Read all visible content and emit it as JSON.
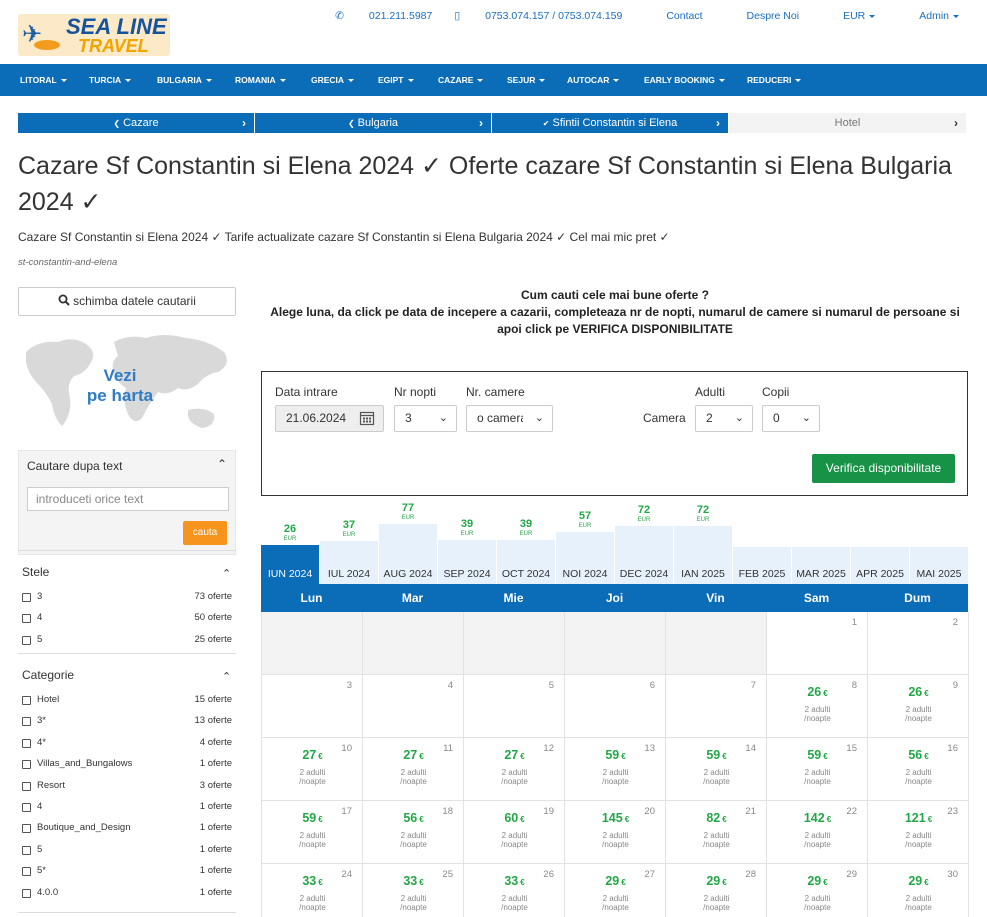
{
  "header": {
    "logo": {
      "line1": "SEA LINE",
      "line2": "TRAVEL"
    },
    "links": [
      {
        "icon": "phone-icon",
        "glyph": "✆",
        "label": "021.211.5987"
      },
      {
        "icon": "mobile-icon",
        "glyph": "▯",
        "label": "0753.074.157 / 0753.074.159"
      },
      {
        "icon": "",
        "glyph": "",
        "label": "Contact"
      },
      {
        "icon": "",
        "glyph": "",
        "label": "Despre Noi"
      },
      {
        "icon": "",
        "glyph": "",
        "label": "EUR"
      },
      {
        "icon": "",
        "glyph": "",
        "label": "Admin"
      }
    ]
  },
  "nav": [
    "LITORAL",
    "TURCIA",
    "BULGARIA",
    "ROMANIA",
    "GRECIA",
    "EGIPT",
    "CAZARE",
    "SEJUR",
    "AUTOCAR",
    "EARLY BOOKING",
    "REDUCERI"
  ],
  "breadcrumbs": [
    {
      "label": "Cazare",
      "icon": "arrow-left-icon"
    },
    {
      "label": "Bulgaria",
      "icon": "arrow-left-icon"
    },
    {
      "label": "Sfintii Constantin si Elena",
      "icon": "check-icon"
    },
    {
      "label": "Hotel",
      "icon": ""
    }
  ],
  "page": {
    "title": "Cazare Sf Constantin si Elena 2024 ✓ Oferte cazare Sf Constantin si Elena Bulgaria 2024 ✓",
    "subtitle": "Cazare Sf Constantin si Elena 2024 ✓ Tarife actualizate cazare Sf Constantin si Elena Bulgaria 2024 ✓ Cel mai mic pret ✓",
    "slug": "st-constantin-and-elena"
  },
  "sidebar": {
    "change_search": "schimba datele cautarii",
    "map_label_1": "Vezi",
    "map_label_2": "pe harta",
    "text_search": {
      "heading": "Cautare dupa text",
      "placeholder": "introduceti orice text",
      "button": "cauta"
    },
    "stars": {
      "heading": "Stele",
      "items": [
        {
          "label": "3",
          "count": "73 oferte"
        },
        {
          "label": "4",
          "count": "50 oferte"
        },
        {
          "label": "5",
          "count": "25 oferte"
        }
      ]
    },
    "categories": {
      "heading": "Categorie",
      "items": [
        {
          "label": "Hotel",
          "count": "15 oferte"
        },
        {
          "label": "3*",
          "count": "13 oferte"
        },
        {
          "label": "4*",
          "count": "4 oferte"
        },
        {
          "label": "Villas_and_Bungalows",
          "count": "1 oferte"
        },
        {
          "label": "Resort",
          "count": "3 oferte"
        },
        {
          "label": "4",
          "count": "1 oferte"
        },
        {
          "label": "Boutique_and_Design",
          "count": "1 oferte"
        },
        {
          "label": "5",
          "count": "1 oferte"
        },
        {
          "label": "5*",
          "count": "1 oferte"
        },
        {
          "label": "4.0.0",
          "count": "1 oferte"
        }
      ]
    }
  },
  "instructions": {
    "line1": "Cum cauti cele mai bune oferte ?",
    "line2": "Alege luna, da click pe data de incepere a cazarii, completeaza nr de nopti, numarul de camere si numarul de persoane si apoi click pe VERIFICA DISPONIBILITATE"
  },
  "search_form": {
    "date_label": "Data intrare",
    "date_value": "21.06.2024",
    "nights_label": "Nr nopti",
    "nights_value": "3",
    "rooms_label": "Nr. camere",
    "rooms_value": "o camera",
    "room_label": "Camera",
    "adults_label": "Adulti",
    "adults_value": "2",
    "kids_label": "Copii",
    "kids_value": "0",
    "verify_button": "Verifica disponibilitate"
  },
  "months": [
    {
      "name": "IUN 2024",
      "price": "26",
      "currency": "EUR",
      "active": true
    },
    {
      "name": "IUL 2024",
      "price": "37",
      "currency": "EUR"
    },
    {
      "name": "AUG 2024",
      "price": "77",
      "currency": "EUR"
    },
    {
      "name": "SEP 2024",
      "price": "39",
      "currency": "EUR"
    },
    {
      "name": "OCT 2024",
      "price": "39",
      "currency": "EUR"
    },
    {
      "name": "NOI 2024",
      "price": "57",
      "currency": "EUR"
    },
    {
      "name": "DEC 2024",
      "price": "72",
      "currency": "EUR"
    },
    {
      "name": "IAN 2025",
      "price": "72",
      "currency": "EUR"
    },
    {
      "name": "FEB 2025",
      "price": "",
      "currency": ""
    },
    {
      "name": "MAR 2025",
      "price": "",
      "currency": ""
    },
    {
      "name": "APR 2025",
      "price": "",
      "currency": ""
    },
    {
      "name": "MAI 2025",
      "price": "",
      "currency": ""
    }
  ],
  "calendar": {
    "weekdays": [
      "Lun",
      "Mar",
      "Mie",
      "Joi",
      "Vin",
      "Sam",
      "Dum"
    ],
    "currency_symbol": "€",
    "price_note_1": "2 adulti",
    "price_note_2": "/noapte",
    "rows": [
      [
        {
          "day": "",
          "price": ""
        },
        {
          "day": "",
          "price": ""
        },
        {
          "day": "",
          "price": ""
        },
        {
          "day": "",
          "price": ""
        },
        {
          "day": "",
          "price": ""
        },
        {
          "day": "1",
          "price": ""
        },
        {
          "day": "2",
          "price": ""
        }
      ],
      [
        {
          "day": "3",
          "price": ""
        },
        {
          "day": "4",
          "price": ""
        },
        {
          "day": "5",
          "price": ""
        },
        {
          "day": "6",
          "price": ""
        },
        {
          "day": "7",
          "price": ""
        },
        {
          "day": "8",
          "price": "26"
        },
        {
          "day": "9",
          "price": "26"
        }
      ],
      [
        {
          "day": "10",
          "price": "27"
        },
        {
          "day": "11",
          "price": "27"
        },
        {
          "day": "12",
          "price": "27"
        },
        {
          "day": "13",
          "price": "59"
        },
        {
          "day": "14",
          "price": "59"
        },
        {
          "day": "15",
          "price": "59"
        },
        {
          "day": "16",
          "price": "56"
        }
      ],
      [
        {
          "day": "17",
          "price": "59"
        },
        {
          "day": "18",
          "price": "56"
        },
        {
          "day": "19",
          "price": "60"
        },
        {
          "day": "20",
          "price": "145"
        },
        {
          "day": "21",
          "price": "82"
        },
        {
          "day": "22",
          "price": "142"
        },
        {
          "day": "23",
          "price": "121"
        }
      ],
      [
        {
          "day": "24",
          "price": "33"
        },
        {
          "day": "25",
          "price": "33"
        },
        {
          "day": "26",
          "price": "33"
        },
        {
          "day": "27",
          "price": "29"
        },
        {
          "day": "28",
          "price": "29"
        },
        {
          "day": "29",
          "price": "29"
        },
        {
          "day": "30",
          "price": "29"
        }
      ]
    ]
  },
  "colors": {
    "primary": "#0b6cb8",
    "price": "#22a746",
    "action": "#179246",
    "search_button": "#f7941d"
  }
}
